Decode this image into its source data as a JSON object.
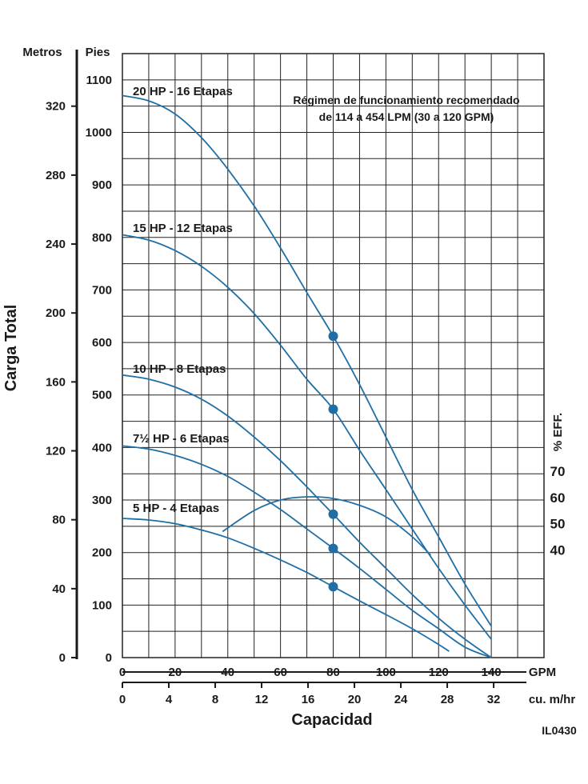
{
  "chart_data": {
    "type": "line",
    "ylabel": "Carga Total",
    "xlabel": "Capacidad",
    "left_axis_title": "Metros",
    "feet_axis_title": "Pies",
    "x_unit_gpm": "GPM",
    "x_unit_m3h": "cu. m/hr",
    "right_axis_title": "% EFF.",
    "reference_id": "IL0430",
    "note": [
      "Régimen de funcionamiento recomendado",
      "de 114 a 454 LPM (30 a 120 GPM)"
    ],
    "xlim_gpm": [
      0,
      160
    ],
    "ylim_ft": [
      0,
      1150
    ],
    "gpm_ticks": [
      "0",
      "20",
      "40",
      "60",
      "80",
      "100",
      "120",
      "140"
    ],
    "m3h_ticks": [
      {
        "value": 0,
        "label": "0"
      },
      {
        "value": 4,
        "label": "4"
      },
      {
        "value": 8,
        "label": "8"
      },
      {
        "value": 12,
        "label": "12"
      },
      {
        "value": 16,
        "label": "16"
      },
      {
        "value": 20,
        "label": "20"
      },
      {
        "value": 24,
        "label": "24"
      },
      {
        "value": 28,
        "label": "28"
      },
      {
        "value": 32,
        "label": "32"
      }
    ],
    "feet_ticks": [
      {
        "value": 0,
        "label": "0"
      },
      {
        "value": 100,
        "label": "100"
      },
      {
        "value": 200,
        "label": "200"
      },
      {
        "value": 300,
        "label": "300"
      },
      {
        "value": 400,
        "label": "400"
      },
      {
        "value": 500,
        "label": "500"
      },
      {
        "value": 600,
        "label": "600"
      },
      {
        "value": 700,
        "label": "700"
      },
      {
        "value": 800,
        "label": "800"
      },
      {
        "value": 900,
        "label": "900"
      },
      {
        "value": 1000,
        "label": "1000"
      },
      {
        "value": 1100,
        "label": "1100"
      }
    ],
    "meter_ticks": [
      {
        "value": 0,
        "label": "0"
      },
      {
        "value": 40,
        "label": "40"
      },
      {
        "value": 80,
        "label": "80"
      },
      {
        "value": 120,
        "label": "120"
      },
      {
        "value": 160,
        "label": "160"
      },
      {
        "value": 200,
        "label": "200"
      },
      {
        "value": 240,
        "label": "240"
      },
      {
        "value": 280,
        "label": "280"
      },
      {
        "value": 320,
        "label": "320"
      }
    ],
    "eff_ticks": [
      {
        "value": 70,
        "label": "70",
        "ft": 355
      },
      {
        "value": 60,
        "label": "60",
        "ft": 305
      },
      {
        "value": 50,
        "label": "50",
        "ft": 255
      },
      {
        "value": 40,
        "label": "40",
        "ft": 205
      }
    ],
    "series": [
      {
        "name": "20 HP - 16 Etapas",
        "x": [
          0,
          10,
          20,
          30,
          40,
          50,
          60,
          70,
          80,
          90,
          100,
          110,
          120,
          130,
          140
        ],
        "y": [
          1070,
          1060,
          1035,
          990,
          930,
          860,
          780,
          695,
          612,
          520,
          420,
          320,
          230,
          140,
          60
        ],
        "rated_point": {
          "x": 80,
          "y": 612
        }
      },
      {
        "name": "15 HP - 12 Etapas",
        "x": [
          0,
          10,
          20,
          30,
          40,
          50,
          60,
          70,
          80,
          90,
          100,
          110,
          120,
          130,
          140
        ],
        "y": [
          805,
          795,
          775,
          745,
          705,
          655,
          595,
          530,
          473,
          395,
          320,
          245,
          170,
          100,
          35
        ],
        "rated_point": {
          "x": 80,
          "y": 473
        }
      },
      {
        "name": "10 HP - 8 Etapas",
        "x": [
          0,
          10,
          20,
          30,
          40,
          50,
          60,
          70,
          80,
          90,
          100,
          110,
          120,
          130,
          140
        ],
        "y": [
          538,
          530,
          515,
          492,
          460,
          420,
          375,
          325,
          273,
          220,
          170,
          120,
          75,
          35,
          0
        ],
        "rated_point": {
          "x": 80,
          "y": 273
        }
      },
      {
        "name": "7½ HP - 6 Etapas",
        "x": [
          0,
          10,
          20,
          30,
          40,
          50,
          60,
          70,
          80,
          90,
          100,
          110,
          120,
          130,
          140
        ],
        "y": [
          403,
          397,
          385,
          368,
          345,
          315,
          282,
          245,
          208,
          170,
          130,
          90,
          55,
          20,
          0
        ],
        "rated_point": {
          "x": 80,
          "y": 208
        }
      },
      {
        "name": "5 HP - 4 Etapas",
        "x": [
          0,
          10,
          20,
          30,
          40,
          50,
          60,
          70,
          80,
          90,
          100,
          110,
          120,
          124
        ],
        "y": [
          265,
          262,
          255,
          243,
          228,
          208,
          186,
          162,
          135,
          108,
          82,
          55,
          25,
          12
        ],
        "rated_point": {
          "x": 80,
          "y": 135
        }
      },
      {
        "name": "% EFF.",
        "x": [
          38,
          50,
          60,
          70,
          80,
          90,
          100,
          110,
          117
        ],
        "y": [
          240,
          280,
          300,
          306,
          303,
          290,
          268,
          230,
          195
        ]
      }
    ]
  }
}
